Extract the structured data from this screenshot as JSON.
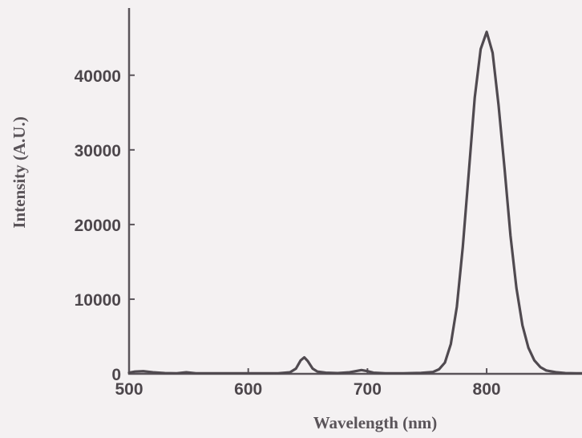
{
  "chart_data": {
    "type": "line",
    "title": "",
    "xlabel": "Wavelength (nm)",
    "ylabel": "Intensity (A.U.)",
    "xlim": [
      500,
      880
    ],
    "ylim": [
      0,
      49000
    ],
    "x_ticks": [
      500,
      600,
      700,
      800
    ],
    "y_ticks": [
      0,
      10000,
      20000,
      30000,
      40000
    ],
    "grid": false,
    "legend": "none",
    "line_color": "#504a50",
    "axis_color": "#5a545a",
    "series": [
      {
        "x": [
          500,
          505,
          512,
          520,
          530,
          540,
          548,
          556,
          570,
          590,
          610,
          625,
          635,
          640,
          644,
          647,
          650,
          654,
          658,
          665,
          675,
          685,
          690,
          695,
          700,
          705,
          715,
          730,
          745,
          755,
          760,
          765,
          770,
          775,
          780,
          785,
          790,
          795,
          800,
          805,
          810,
          815,
          820,
          825,
          830,
          835,
          840,
          845,
          850,
          858,
          866,
          875,
          880
        ],
        "y": [
          150,
          300,
          350,
          200,
          100,
          80,
          200,
          80,
          60,
          60,
          60,
          80,
          200,
          700,
          1800,
          2200,
          1700,
          700,
          300,
          150,
          100,
          200,
          350,
          500,
          350,
          150,
          80,
          80,
          120,
          250,
          600,
          1500,
          4000,
          9000,
          17000,
          27000,
          37000,
          43500,
          45800,
          43000,
          36000,
          27500,
          18500,
          11500,
          6500,
          3500,
          1800,
          900,
          450,
          220,
          100,
          60,
          60
        ]
      }
    ]
  }
}
